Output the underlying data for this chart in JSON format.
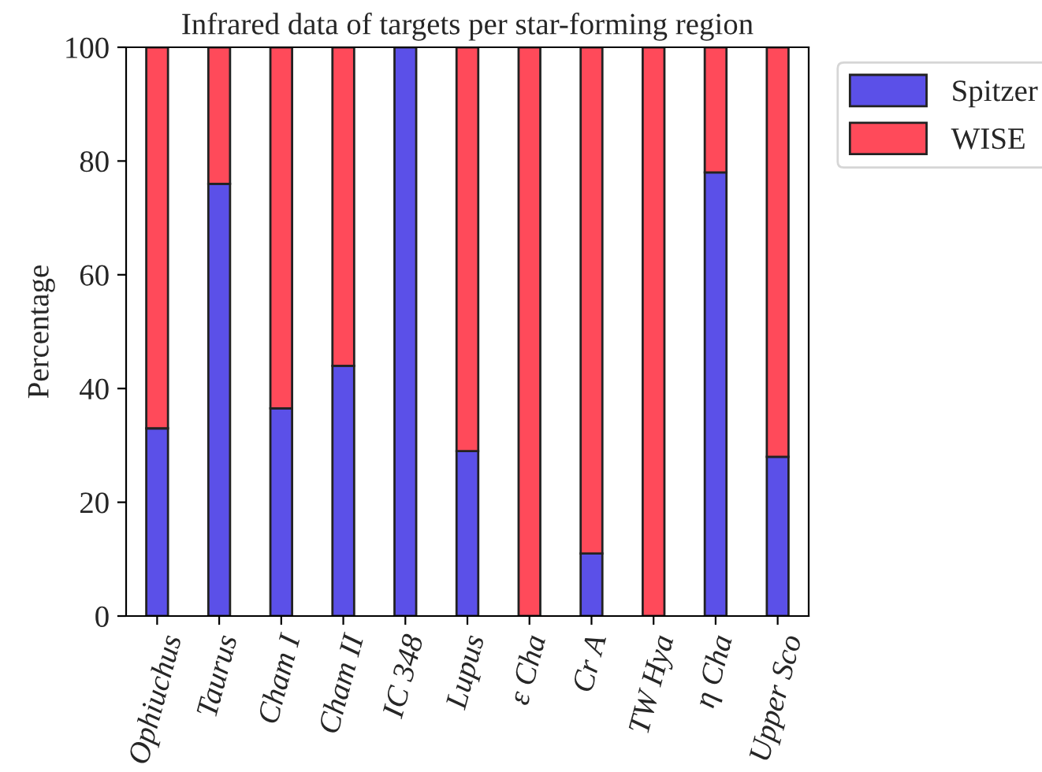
{
  "chart_data": {
    "type": "bar",
    "title": "Infrared data of targets per star-forming region",
    "ylabel": "Percentage",
    "categories": [
      "Ophiuchus",
      "Taurus",
      "Cham I",
      "Cham II",
      "IC 348",
      "Lupus",
      "ε Cha",
      "Cr A",
      "TW Hya",
      "η Cha",
      "Upper Sco"
    ],
    "stacked": true,
    "series": [
      {
        "name": "Spitzer",
        "color": "#5b50e8",
        "values": [
          33,
          76,
          36.5,
          44,
          100,
          29,
          0,
          11,
          0,
          78,
          28
        ]
      },
      {
        "name": "WISE",
        "color": "#ff4a5a",
        "values": [
          67,
          24,
          63.5,
          56,
          0,
          71,
          100,
          89,
          100,
          22,
          72
        ]
      }
    ],
    "ylim": [
      0,
      100
    ],
    "yticks": [
      0,
      20,
      40,
      60,
      80,
      100
    ],
    "grid": false,
    "legend": "top right"
  }
}
